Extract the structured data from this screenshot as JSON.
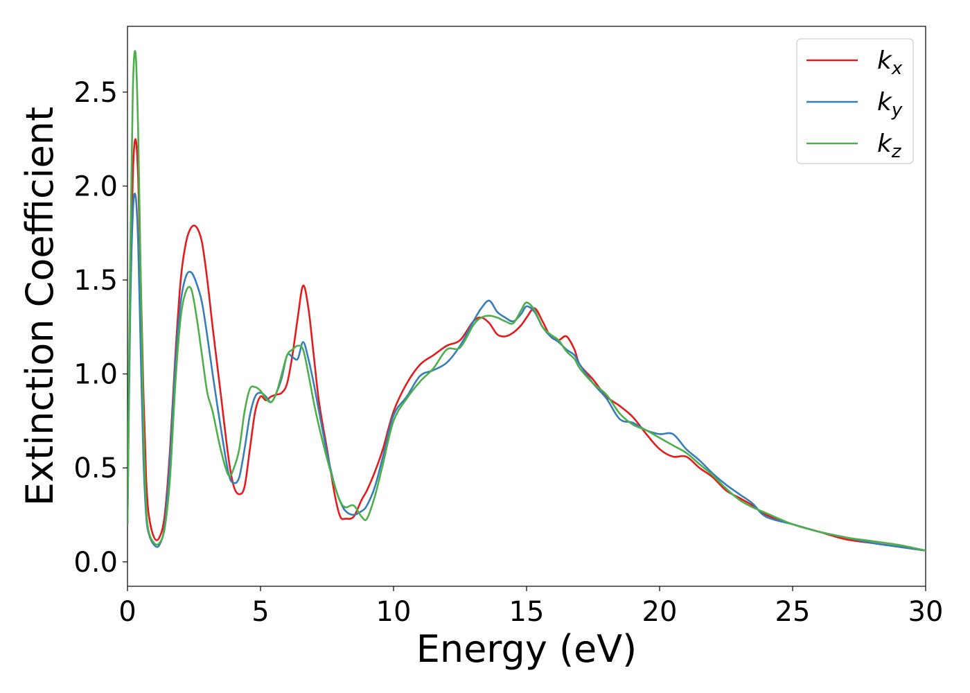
{
  "chart_data": {
    "type": "line",
    "xlabel": "Energy (eV)",
    "ylabel": "Extinction Coefficient",
    "xlim": [
      0,
      30
    ],
    "ylim": [
      -0.13,
      2.85
    ],
    "xticks": [
      0,
      5,
      10,
      15,
      20,
      25,
      30
    ],
    "xtick_labels": [
      "0",
      "5",
      "10",
      "15",
      "20",
      "25",
      "30"
    ],
    "yticks": [
      0.0,
      0.5,
      1.0,
      1.5,
      2.0,
      2.5
    ],
    "ytick_labels": [
      "0.0",
      "0.5",
      "1.0",
      "1.5",
      "2.0",
      "2.5"
    ],
    "grid": false,
    "legend_position": "top-right",
    "series": [
      {
        "name": "k",
        "subscript": "x",
        "color": "#e41a1c",
        "x": [
          0,
          0.1,
          0.2,
          0.3,
          0.4,
          0.5,
          0.6,
          0.7,
          0.8,
          1.0,
          1.2,
          1.4,
          1.6,
          1.8,
          2.0,
          2.2,
          2.4,
          2.6,
          2.8,
          3.0,
          3.2,
          3.5,
          3.8,
          4.0,
          4.2,
          4.4,
          4.6,
          4.8,
          5.0,
          5.2,
          5.4,
          5.6,
          5.8,
          6.0,
          6.2,
          6.4,
          6.6,
          6.8,
          7.0,
          7.2,
          7.5,
          7.8,
          8.0,
          8.2,
          8.5,
          8.8,
          9.0,
          9.3,
          9.6,
          10.0,
          10.5,
          11.0,
          11.5,
          12.0,
          12.5,
          13.0,
          13.3,
          13.6,
          13.9,
          14.2,
          14.5,
          14.8,
          15.0,
          15.3,
          15.6,
          15.9,
          16.2,
          16.5,
          16.8,
          17.0,
          17.5,
          18.0,
          18.5,
          19.0,
          19.5,
          20.0,
          20.5,
          21.0,
          21.5,
          22.0,
          22.5,
          23.0,
          23.5,
          24.0,
          25.0,
          26.0,
          27.0,
          28.0,
          29.0,
          30.0
        ],
        "y": [
          0.2,
          1.4,
          2.05,
          2.25,
          2.05,
          1.5,
          0.9,
          0.45,
          0.25,
          0.13,
          0.13,
          0.25,
          0.6,
          1.1,
          1.5,
          1.7,
          1.78,
          1.78,
          1.7,
          1.5,
          1.25,
          0.9,
          0.55,
          0.4,
          0.36,
          0.4,
          0.6,
          0.8,
          0.88,
          0.86,
          0.88,
          0.89,
          0.9,
          0.95,
          1.1,
          1.3,
          1.47,
          1.35,
          1.1,
          0.85,
          0.6,
          0.35,
          0.24,
          0.23,
          0.24,
          0.33,
          0.38,
          0.48,
          0.6,
          0.8,
          0.95,
          1.05,
          1.1,
          1.15,
          1.18,
          1.28,
          1.3,
          1.27,
          1.21,
          1.2,
          1.22,
          1.26,
          1.3,
          1.35,
          1.28,
          1.2,
          1.18,
          1.2,
          1.13,
          1.05,
          0.97,
          0.88,
          0.83,
          0.77,
          0.68,
          0.6,
          0.56,
          0.56,
          0.5,
          0.45,
          0.38,
          0.34,
          0.3,
          0.25,
          0.2,
          0.16,
          0.12,
          0.1,
          0.08,
          0.06
        ]
      },
      {
        "name": "k",
        "subscript": "y",
        "color": "#377eb8",
        "x": [
          0,
          0.1,
          0.2,
          0.3,
          0.4,
          0.5,
          0.6,
          0.7,
          0.8,
          1.0,
          1.2,
          1.4,
          1.6,
          1.8,
          2.0,
          2.2,
          2.4,
          2.6,
          2.8,
          3.0,
          3.2,
          3.5,
          3.8,
          4.0,
          4.2,
          4.4,
          4.6,
          4.8,
          5.0,
          5.2,
          5.4,
          5.6,
          5.8,
          6.0,
          6.2,
          6.4,
          6.6,
          6.8,
          7.0,
          7.2,
          7.5,
          7.8,
          8.0,
          8.2,
          8.5,
          8.8,
          9.0,
          9.3,
          9.6,
          10.0,
          10.5,
          11.0,
          11.5,
          12.0,
          12.5,
          13.0,
          13.3,
          13.6,
          13.9,
          14.2,
          14.5,
          14.8,
          15.0,
          15.3,
          15.6,
          15.9,
          16.2,
          16.5,
          16.8,
          17.0,
          17.5,
          18.0,
          18.5,
          19.0,
          19.5,
          20.0,
          20.5,
          21.0,
          21.5,
          22.0,
          22.5,
          23.0,
          23.5,
          24.0,
          25.0,
          26.0,
          27.0,
          28.0,
          29.0,
          30.0
        ],
        "y": [
          0.2,
          1.3,
          1.85,
          1.95,
          1.7,
          1.1,
          0.55,
          0.25,
          0.15,
          0.09,
          0.09,
          0.2,
          0.55,
          1.05,
          1.38,
          1.52,
          1.54,
          1.48,
          1.38,
          1.2,
          1.0,
          0.72,
          0.47,
          0.42,
          0.45,
          0.6,
          0.78,
          0.88,
          0.9,
          0.88,
          0.85,
          0.9,
          0.98,
          1.1,
          1.09,
          1.08,
          1.17,
          1.08,
          0.95,
          0.8,
          0.58,
          0.4,
          0.32,
          0.27,
          0.25,
          0.27,
          0.3,
          0.4,
          0.56,
          0.78,
          0.88,
          0.99,
          1.02,
          1.06,
          1.15,
          1.28,
          1.35,
          1.39,
          1.33,
          1.3,
          1.28,
          1.32,
          1.36,
          1.33,
          1.25,
          1.2,
          1.17,
          1.13,
          1.1,
          1.05,
          0.95,
          0.87,
          0.76,
          0.74,
          0.7,
          0.68,
          0.68,
          0.6,
          0.54,
          0.47,
          0.41,
          0.36,
          0.31,
          0.24,
          0.2,
          0.16,
          0.13,
          0.1,
          0.08,
          0.06
        ]
      },
      {
        "name": "k",
        "subscript": "z",
        "color": "#4daf4a",
        "x": [
          0,
          0.1,
          0.2,
          0.3,
          0.4,
          0.5,
          0.6,
          0.7,
          0.8,
          1.0,
          1.2,
          1.4,
          1.6,
          1.8,
          2.0,
          2.2,
          2.4,
          2.6,
          2.8,
          3.0,
          3.2,
          3.5,
          3.8,
          4.0,
          4.2,
          4.4,
          4.6,
          4.8,
          5.0,
          5.2,
          5.4,
          5.6,
          5.8,
          6.0,
          6.2,
          6.4,
          6.6,
          6.8,
          7.0,
          7.2,
          7.5,
          7.8,
          8.0,
          8.2,
          8.5,
          8.8,
          9.0,
          9.3,
          9.6,
          10.0,
          10.5,
          11.0,
          11.5,
          12.0,
          12.5,
          13.0,
          13.3,
          13.6,
          13.9,
          14.2,
          14.5,
          14.8,
          15.0,
          15.3,
          15.6,
          15.9,
          16.2,
          16.5,
          16.8,
          17.0,
          17.5,
          18.0,
          18.5,
          19.0,
          19.5,
          20.0,
          20.5,
          21.0,
          21.5,
          22.0,
          22.5,
          23.0,
          23.5,
          24.0,
          25.0,
          26.0,
          27.0,
          28.0,
          29.0,
          30.0
        ],
        "y": [
          0.2,
          1.6,
          2.5,
          2.71,
          2.3,
          1.5,
          0.75,
          0.3,
          0.16,
          0.1,
          0.1,
          0.18,
          0.45,
          0.95,
          1.3,
          1.44,
          1.45,
          1.3,
          1.1,
          0.9,
          0.8,
          0.6,
          0.46,
          0.5,
          0.6,
          0.8,
          0.92,
          0.93,
          0.91,
          0.87,
          0.85,
          0.9,
          1.0,
          1.1,
          1.13,
          1.15,
          1.13,
          1.0,
          0.85,
          0.72,
          0.55,
          0.4,
          0.32,
          0.29,
          0.3,
          0.24,
          0.23,
          0.35,
          0.52,
          0.75,
          0.87,
          0.96,
          1.03,
          1.13,
          1.14,
          1.26,
          1.3,
          1.31,
          1.3,
          1.28,
          1.27,
          1.34,
          1.38,
          1.34,
          1.25,
          1.21,
          1.18,
          1.12,
          1.08,
          1.03,
          0.95,
          0.89,
          0.79,
          0.73,
          0.7,
          0.66,
          0.62,
          0.58,
          0.52,
          0.46,
          0.39,
          0.33,
          0.29,
          0.26,
          0.2,
          0.16,
          0.13,
          0.11,
          0.09,
          0.06
        ]
      }
    ]
  }
}
